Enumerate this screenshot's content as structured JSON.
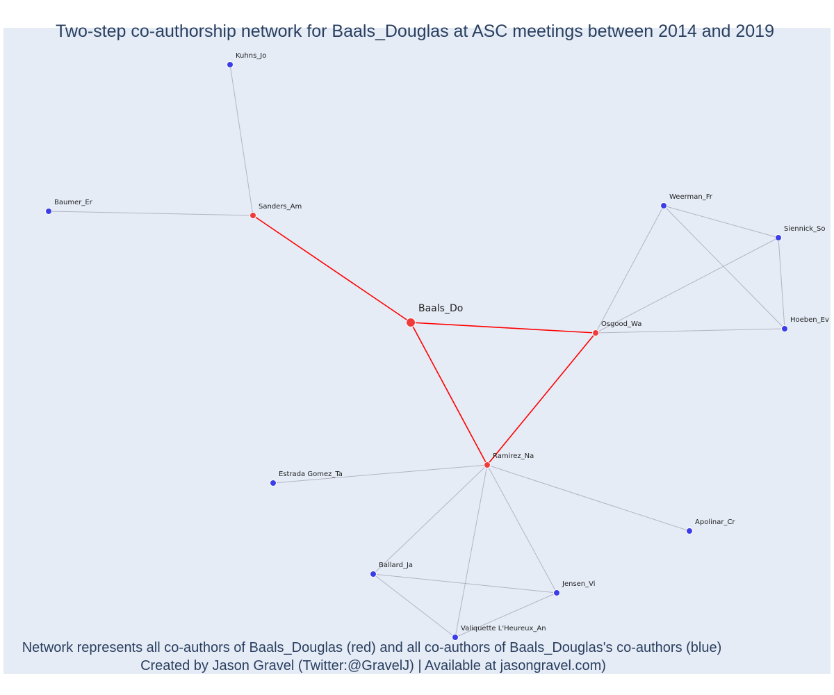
{
  "title": "Two-step co-authorship network for Baals_Douglas at ASC meetings between 2014 and 2019",
  "caption_line1": "Network represents all co-authors of Baals_Douglas (red) and all co-authors of Baals_Douglas's co-authors (blue)",
  "caption_line2": "Created by Jason Gravel (Twitter:@GravelJ) | Available at jasongravel.com)",
  "colors": {
    "plot_background": "#e5ecf6",
    "ego_edge": "#ff0000",
    "other_edge": "#b4b4c4",
    "red_node": "#ef3b3b",
    "blue_node": "#3b3ee6",
    "text": "#2a3f5f"
  },
  "nodes": [
    {
      "id": "Baals_Do",
      "label": "Baals_Do",
      "group": "ego"
    },
    {
      "id": "Sanders_Am",
      "label": "Sanders_Am",
      "group": "red"
    },
    {
      "id": "Osgood_Wa",
      "label": "Osgood_Wa",
      "group": "red"
    },
    {
      "id": "Ramirez_Na",
      "label": "Ramirez_Na",
      "group": "red"
    },
    {
      "id": "Kuhns_Jo",
      "label": "Kuhns_Jo",
      "group": "blue"
    },
    {
      "id": "Baumer_Er",
      "label": "Baumer_Er",
      "group": "blue"
    },
    {
      "id": "Weerman_Fr",
      "label": "Weerman_Fr",
      "group": "blue"
    },
    {
      "id": "Siennick_So",
      "label": "Siennick_So",
      "group": "blue"
    },
    {
      "id": "Hoeben_Ev",
      "label": "Hoeben_Ev",
      "group": "blue"
    },
    {
      "id": "Estrada Gomez_Ta",
      "label": "Estrada Gomez_Ta",
      "group": "blue"
    },
    {
      "id": "Apolinar_Cr",
      "label": "Apolinar_Cr",
      "group": "blue"
    },
    {
      "id": "Ballard_Ja",
      "label": "Ballard_Ja",
      "group": "blue"
    },
    {
      "id": "Jensen_Vi",
      "label": "Jensen_Vi",
      "group": "blue"
    },
    {
      "id": "Valiquette L'Heureux_An",
      "label": "Valiquette L'Heureux_An",
      "group": "blue"
    }
  ],
  "edges": [
    {
      "source": "Baals_Do",
      "target": "Sanders_Am",
      "kind": "ego"
    },
    {
      "source": "Baals_Do",
      "target": "Osgood_Wa",
      "kind": "ego"
    },
    {
      "source": "Baals_Do",
      "target": "Ramirez_Na",
      "kind": "ego"
    },
    {
      "source": "Osgood_Wa",
      "target": "Ramirez_Na",
      "kind": "ego"
    },
    {
      "source": "Sanders_Am",
      "target": "Kuhns_Jo",
      "kind": "other"
    },
    {
      "source": "Sanders_Am",
      "target": "Baumer_Er",
      "kind": "other"
    },
    {
      "source": "Osgood_Wa",
      "target": "Weerman_Fr",
      "kind": "other"
    },
    {
      "source": "Osgood_Wa",
      "target": "Siennick_So",
      "kind": "other"
    },
    {
      "source": "Osgood_Wa",
      "target": "Hoeben_Ev",
      "kind": "other"
    },
    {
      "source": "Weerman_Fr",
      "target": "Siennick_So",
      "kind": "other"
    },
    {
      "source": "Weerman_Fr",
      "target": "Hoeben_Ev",
      "kind": "other"
    },
    {
      "source": "Siennick_So",
      "target": "Hoeben_Ev",
      "kind": "other"
    },
    {
      "source": "Ramirez_Na",
      "target": "Estrada Gomez_Ta",
      "kind": "other"
    },
    {
      "source": "Ramirez_Na",
      "target": "Apolinar_Cr",
      "kind": "other"
    },
    {
      "source": "Ramirez_Na",
      "target": "Ballard_Ja",
      "kind": "other"
    },
    {
      "source": "Ramirez_Na",
      "target": "Jensen_Vi",
      "kind": "other"
    },
    {
      "source": "Ramirez_Na",
      "target": "Valiquette L'Heureux_An",
      "kind": "other"
    },
    {
      "source": "Ballard_Ja",
      "target": "Jensen_Vi",
      "kind": "other"
    },
    {
      "source": "Ballard_Ja",
      "target": "Valiquette L'Heureux_An",
      "kind": "other"
    },
    {
      "source": "Jensen_Vi",
      "target": "Valiquette L'Heureux_An",
      "kind": "other"
    }
  ]
}
